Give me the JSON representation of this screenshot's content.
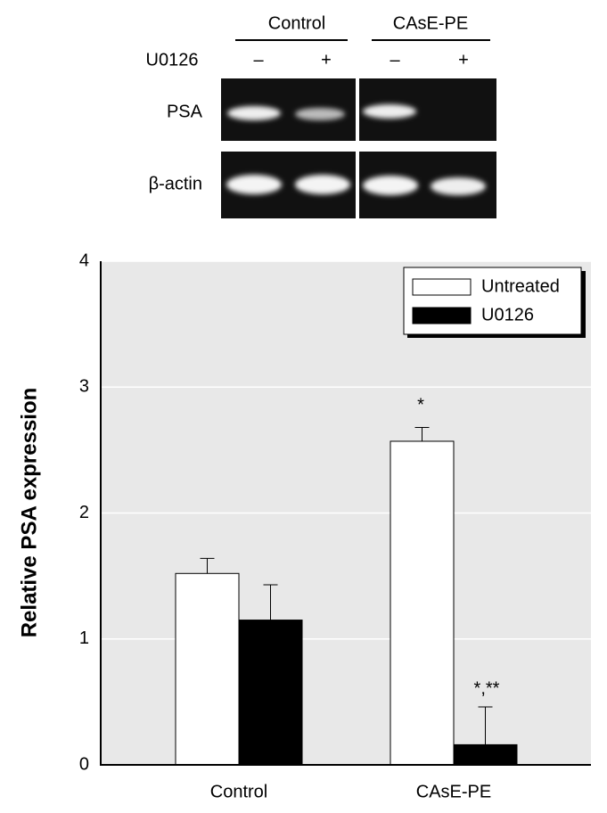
{
  "blot": {
    "groups": [
      "Control",
      "CAsE-PE"
    ],
    "treatment_label": "U0126",
    "lanes": [
      "–",
      "+",
      "–",
      "+"
    ],
    "rows": [
      "PSA",
      "β-actin"
    ]
  },
  "chart_data": {
    "type": "bar",
    "ylabel": "Relative PSA expression",
    "categories": [
      "Control",
      "CAsE-PE"
    ],
    "series": [
      {
        "name": "Untreated",
        "color": "#ffffff",
        "values": [
          1.52,
          2.57
        ],
        "errors": [
          0.12,
          0.11
        ]
      },
      {
        "name": "U0126",
        "color": "#000000",
        "values": [
          1.15,
          0.16
        ],
        "errors": [
          0.28,
          0.3
        ]
      }
    ],
    "ylim": [
      0,
      4
    ],
    "yticks": [
      0,
      1,
      2,
      3,
      4
    ],
    "grid": true,
    "annotations": [
      "*",
      "*,**"
    ]
  }
}
